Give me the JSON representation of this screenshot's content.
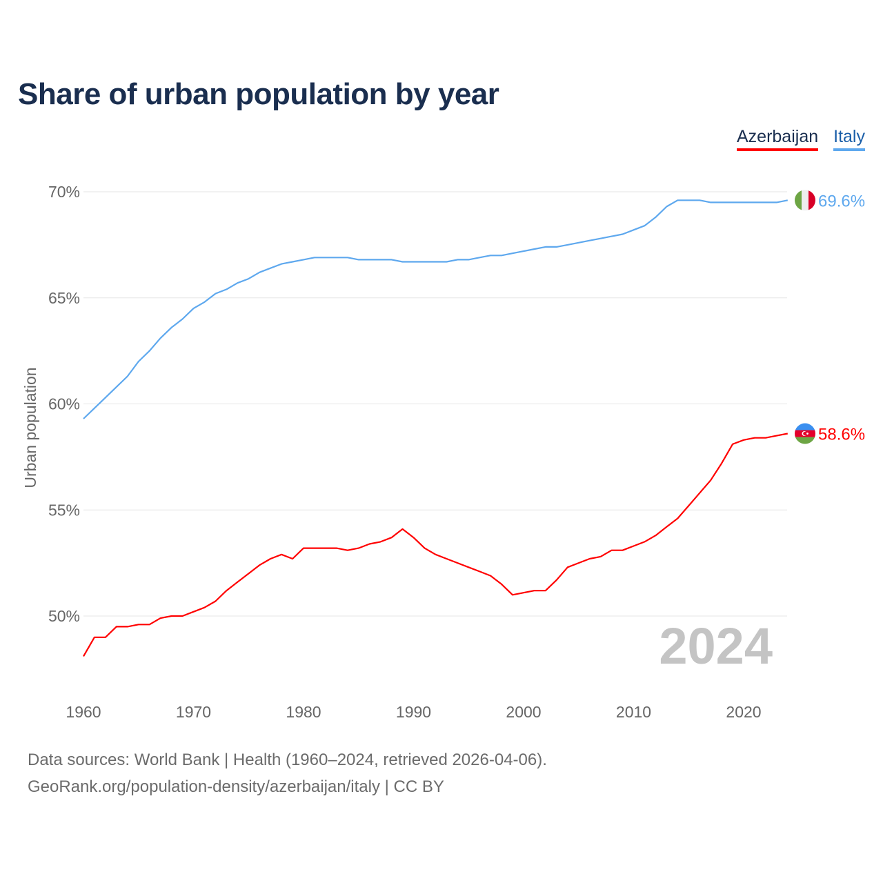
{
  "chart_data": {
    "type": "line",
    "title": "Share of urban population by year",
    "ylabel": "Urban population",
    "xlabel": "",
    "xlim": [
      1960,
      2024
    ],
    "ylim": [
      50,
      70
    ],
    "x_ticks": [
      1960,
      1970,
      1980,
      1990,
      2000,
      2010,
      2020
    ],
    "y_ticks": [
      50,
      55,
      60,
      65,
      70
    ],
    "y_tick_labels": [
      "50%",
      "55%",
      "60%",
      "65%",
      "70%"
    ],
    "grid": true,
    "legend_position": "top-right",
    "watermark_year": "2024",
    "x": [
      1960,
      1961,
      1962,
      1963,
      1964,
      1965,
      1966,
      1967,
      1968,
      1969,
      1970,
      1971,
      1972,
      1973,
      1974,
      1975,
      1976,
      1977,
      1978,
      1979,
      1980,
      1981,
      1982,
      1983,
      1984,
      1985,
      1986,
      1987,
      1988,
      1989,
      1990,
      1991,
      1992,
      1993,
      1994,
      1995,
      1996,
      1997,
      1998,
      1999,
      2000,
      2001,
      2002,
      2003,
      2004,
      2005,
      2006,
      2007,
      2008,
      2009,
      2010,
      2011,
      2012,
      2013,
      2014,
      2015,
      2016,
      2017,
      2018,
      2019,
      2020,
      2021,
      2022,
      2023,
      2024
    ],
    "series": [
      {
        "name": "Azerbaijan",
        "color": "#ff0000",
        "end_label": "58.6%",
        "values": [
          48.1,
          49.0,
          49.0,
          49.5,
          49.5,
          49.6,
          49.6,
          49.9,
          50.0,
          50.0,
          50.2,
          50.4,
          50.7,
          51.2,
          51.6,
          52.0,
          52.4,
          52.7,
          52.9,
          52.7,
          53.2,
          53.2,
          53.2,
          53.2,
          53.1,
          53.2,
          53.4,
          53.5,
          53.7,
          54.1,
          53.7,
          53.2,
          52.9,
          52.7,
          52.5,
          52.3,
          52.1,
          51.9,
          51.5,
          51.0,
          51.1,
          51.2,
          51.2,
          51.7,
          52.3,
          52.5,
          52.7,
          52.8,
          53.1,
          53.1,
          53.3,
          53.5,
          53.8,
          54.2,
          54.6,
          55.2,
          55.8,
          56.4,
          57.2,
          58.1,
          58.3,
          58.4,
          58.4,
          58.5,
          58.6
        ]
      },
      {
        "name": "Italy",
        "color": "#5ea8ee",
        "end_label": "69.6%",
        "values": [
          59.3,
          59.8,
          60.3,
          60.8,
          61.3,
          62.0,
          62.5,
          63.1,
          63.6,
          64.0,
          64.5,
          64.8,
          65.2,
          65.4,
          65.7,
          65.9,
          66.2,
          66.4,
          66.6,
          66.7,
          66.8,
          66.9,
          66.9,
          66.9,
          66.9,
          66.8,
          66.8,
          66.8,
          66.8,
          66.7,
          66.7,
          66.7,
          66.7,
          66.7,
          66.8,
          66.8,
          66.9,
          67.0,
          67.0,
          67.1,
          67.2,
          67.3,
          67.4,
          67.4,
          67.5,
          67.6,
          67.7,
          67.8,
          67.9,
          68.0,
          68.2,
          68.4,
          68.8,
          69.3,
          69.6,
          69.6,
          69.6,
          69.5,
          69.5,
          69.5,
          69.5,
          69.5,
          69.5,
          69.5,
          69.6
        ]
      }
    ]
  },
  "footer": {
    "line1": "Data sources: World Bank | Health (1960–2024, retrieved 2026-04-06).",
    "line2": "GeoRank.org/population-density/azerbaijan/italy | CC BY"
  }
}
